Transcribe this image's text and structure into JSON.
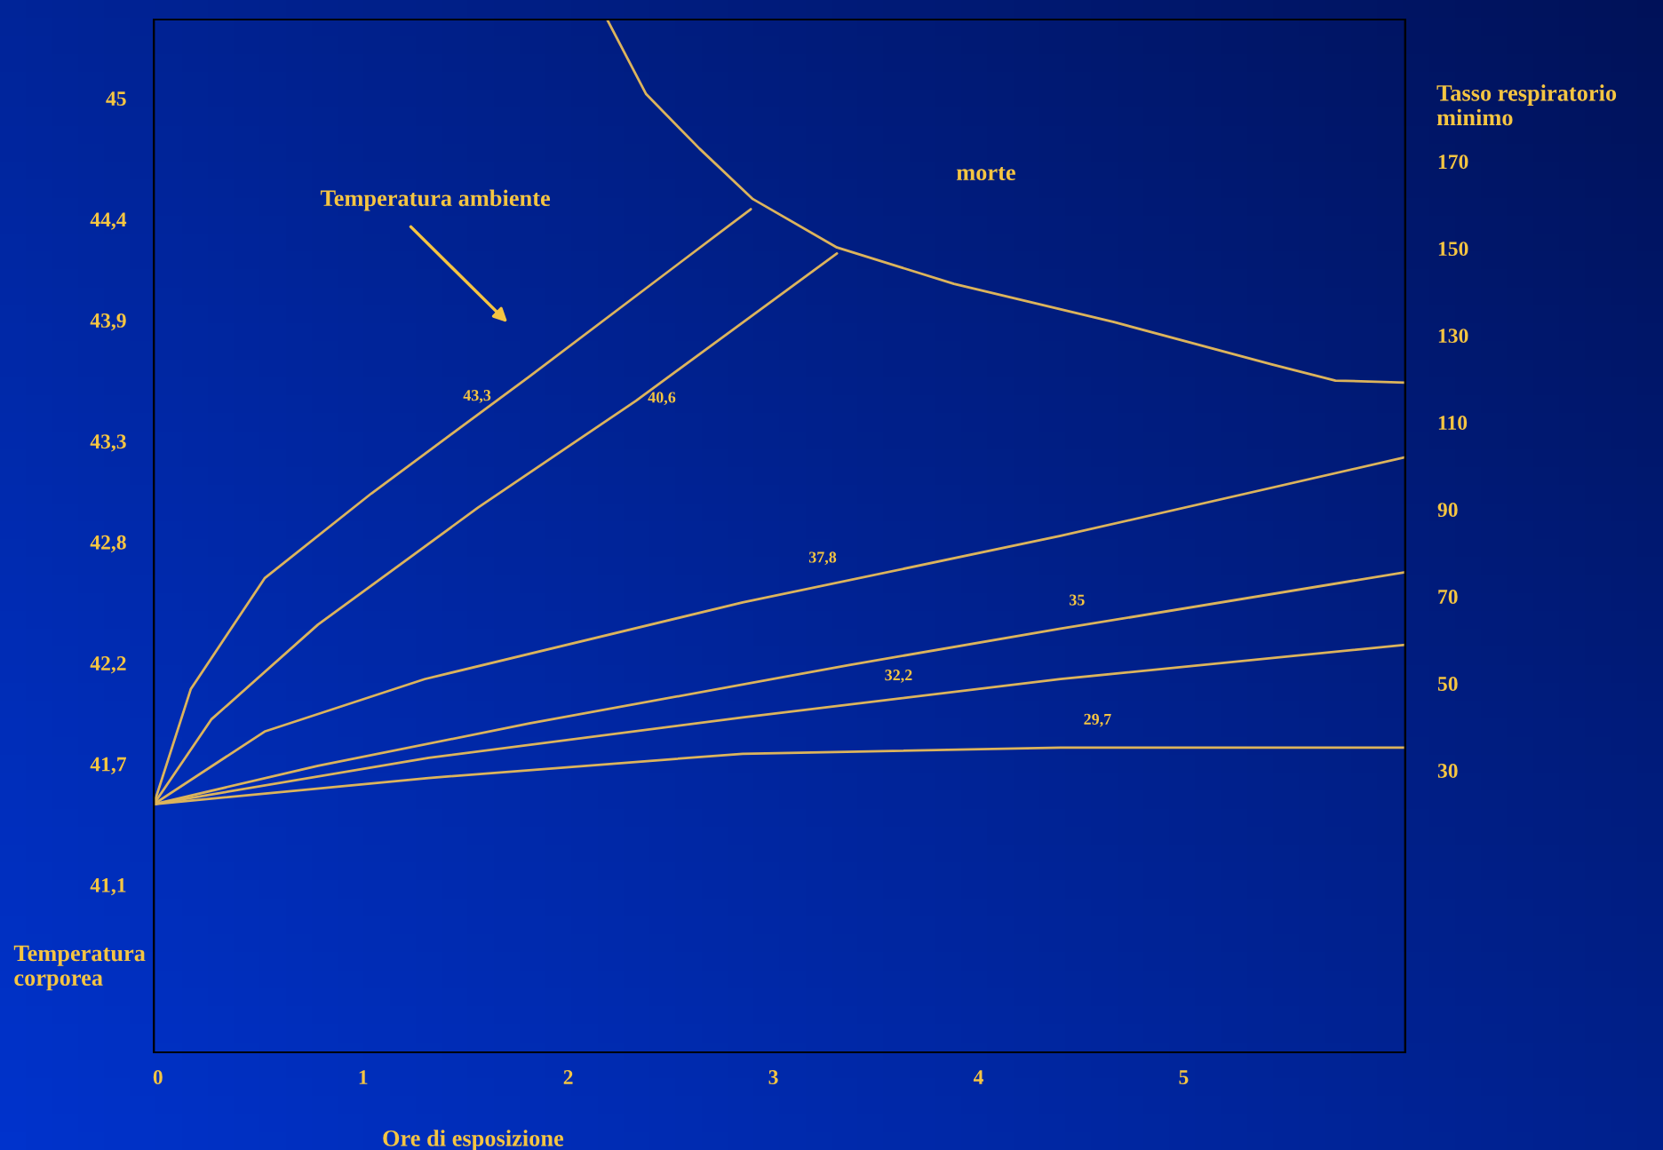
{
  "chart_data": {
    "type": "line",
    "xlabel": "Ore di esposizione",
    "ylabel": "Temperatura\ncorporea",
    "y2label": "Tasso respiratorio\nminimo",
    "xlim": [
      -0.02,
      6.08
    ],
    "xticks": [
      0,
      1,
      2,
      3,
      4,
      5
    ],
    "ylim": [
      40.27,
      45.39
    ],
    "yticks": [
      {
        "value": 41.1,
        "label": "41,1"
      },
      {
        "value": 41.7,
        "label": "41,7"
      },
      {
        "value": 42.2,
        "label": "42,2"
      },
      {
        "value": 42.8,
        "label": "42,8"
      },
      {
        "value": 43.3,
        "label": "43,3"
      },
      {
        "value": 43.9,
        "label": "43,9"
      },
      {
        "value": 44.4,
        "label": "44,4"
      },
      {
        "value": 45,
        "label": "45"
      }
    ],
    "y2lim": [
      -34.8,
      202.6
    ],
    "y2ticks": [
      30,
      50,
      70,
      90,
      110,
      130,
      150,
      170
    ],
    "grid": false,
    "legend": false,
    "marker": "none",
    "line_style": "solid",
    "series": [
      {
        "name": "29,7",
        "color": "#dcb45c",
        "x": [
          -0.02,
          1.32,
          2.85,
          4.4,
          6.08
        ],
        "values": [
          41.5,
          41.63,
          41.75,
          41.78,
          41.78
        ]
      },
      {
        "name": "32,2",
        "color": "#dcb45c",
        "x": [
          -0.02,
          1.32,
          2.85,
          4.4,
          6.08
        ],
        "values": [
          41.5,
          41.73,
          41.93,
          42.12,
          42.29
        ]
      },
      {
        "name": "35",
        "color": "#dcb45c",
        "x": [
          -0.02,
          0.78,
          1.81,
          3.37,
          4.4,
          6.08
        ],
        "values": [
          41.5,
          41.69,
          41.9,
          42.19,
          42.37,
          42.65
        ]
      },
      {
        "name": "37,8",
        "color": "#dcb45c",
        "x": [
          -0.02,
          0.52,
          1.3,
          2.85,
          4.4,
          6.08
        ],
        "values": [
          41.5,
          41.86,
          42.12,
          42.5,
          42.83,
          43.22
        ]
      },
      {
        "name": "40,6",
        "color": "#dcb45c",
        "x": [
          -0.02,
          0.26,
          0.78,
          1.56,
          2.33,
          3.31
        ],
        "values": [
          41.5,
          41.92,
          42.39,
          42.97,
          43.5,
          44.23
        ]
      },
      {
        "name": "43,3",
        "color": "#dcb45c",
        "x": [
          -0.02,
          0.16,
          0.52,
          1.04,
          1.81,
          2.89
        ],
        "values": [
          41.5,
          42.07,
          42.62,
          43.04,
          43.62,
          44.45
        ]
      },
      {
        "color": "#dcb45c",
        "x": [
          2.19,
          2.38,
          2.64,
          2.9,
          3.31,
          3.88,
          4.66,
          5.43,
          5.74,
          6.08
        ],
        "values": [
          45.39,
          45.02,
          44.75,
          44.5,
          44.26,
          44.08,
          43.89,
          43.68,
          43.6,
          43.59
        ]
      }
    ],
    "annotations": [
      "morte",
      "Temperatura ambiente"
    ]
  }
}
